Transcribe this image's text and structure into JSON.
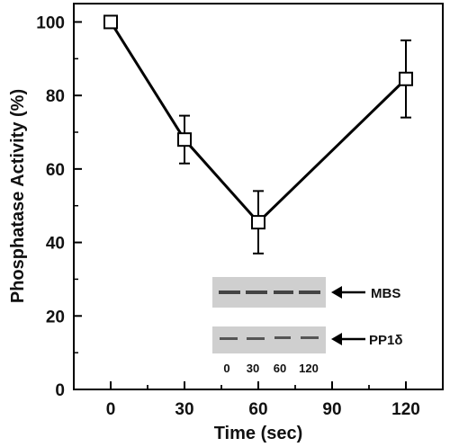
{
  "chart_data": {
    "type": "line",
    "xlabel": "Time (sec)",
    "ylabel": "Phosphatase Activity (%)",
    "xlim": [
      -15,
      135
    ],
    "ylim": [
      0,
      105
    ],
    "x_ticks": [
      "0",
      "30",
      "60",
      "90",
      "120"
    ],
    "y_ticks": [
      "0",
      "20",
      "40",
      "60",
      "80",
      "100"
    ],
    "grid": false,
    "series": [
      {
        "marker": "open-square",
        "color": "#000000",
        "points": [
          {
            "x": 0,
            "y": 100,
            "err": 0
          },
          {
            "x": 30,
            "y": 68,
            "err": 6.5
          },
          {
            "x": 60,
            "y": 45.5,
            "err": 8.5
          },
          {
            "x": 120,
            "y": 84.5,
            "err": 10.5
          }
        ]
      }
    ],
    "inset": {
      "bands": [
        "MBS",
        "PP1δ"
      ],
      "lanes": [
        "0",
        "30",
        "60",
        "120"
      ]
    }
  }
}
